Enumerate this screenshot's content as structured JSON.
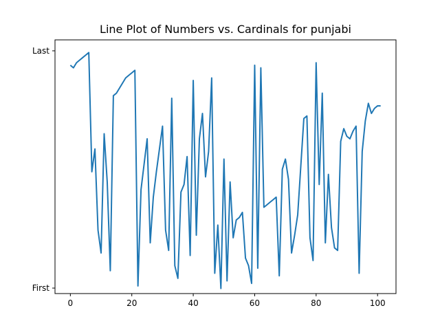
{
  "chart_data": {
    "type": "line",
    "title": "Line Plot of Numbers vs. Cardinals for punjabi",
    "xlabel": "",
    "ylabel": "",
    "xlim": [
      -5,
      106
    ],
    "ylim": [
      0,
      1
    ],
    "x_ticks": [
      0,
      20,
      40,
      60,
      80,
      100
    ],
    "y_ticks": [
      {
        "value": 0.0216,
        "label": "First"
      },
      {
        "value": 0.9568,
        "label": "Last"
      }
    ],
    "grid": false,
    "legend": "none",
    "line_color": "#1f77b4",
    "series": [
      {
        "x": [
          0,
          1,
          2,
          3,
          4,
          5,
          6,
          7,
          8,
          9,
          10,
          11,
          12,
          13,
          14,
          15,
          16,
          17,
          18,
          19,
          20,
          21,
          22,
          23,
          24,
          25,
          26,
          27,
          28,
          29,
          30,
          31,
          32,
          33,
          34,
          35,
          36,
          37,
          38,
          39,
          40,
          41,
          42,
          43,
          44,
          45,
          46,
          47,
          48,
          49,
          50,
          51,
          52,
          53,
          54,
          55,
          56,
          57,
          58,
          59,
          60,
          61,
          62,
          63,
          64,
          65,
          66,
          67,
          68,
          69,
          70,
          71,
          72,
          73,
          74,
          75,
          76,
          77,
          78,
          79,
          80,
          81,
          82,
          83,
          84,
          85,
          86,
          87,
          88,
          89,
          90,
          91,
          92,
          93,
          94,
          95,
          96,
          97,
          98,
          99,
          100,
          101
        ],
        "y": [
          0.9,
          0.89,
          0.91,
          0.92,
          0.93,
          0.94,
          0.95,
          0.48,
          0.57,
          0.25,
          0.16,
          0.63,
          0.44,
          0.09,
          0.78,
          0.79,
          0.81,
          0.83,
          0.85,
          0.86,
          0.87,
          0.88,
          0.03,
          0.41,
          0.51,
          0.61,
          0.2,
          0.38,
          0.48,
          0.57,
          0.66,
          0.25,
          0.17,
          0.77,
          0.11,
          0.06,
          0.4,
          0.43,
          0.54,
          0.15,
          0.84,
          0.23,
          0.61,
          0.71,
          0.46,
          0.56,
          0.85,
          0.08,
          0.27,
          0.02,
          0.53,
          0.05,
          0.44,
          0.22,
          0.29,
          0.3,
          0.32,
          0.14,
          0.11,
          0.04,
          0.9,
          0.1,
          0.89,
          0.34,
          0.35,
          0.36,
          0.37,
          0.38,
          0.07,
          0.49,
          0.53,
          0.45,
          0.16,
          0.23,
          0.31,
          0.5,
          0.69,
          0.7,
          0.22,
          0.13,
          0.91,
          0.43,
          0.79,
          0.2,
          0.47,
          0.26,
          0.18,
          0.17,
          0.6,
          0.65,
          0.62,
          0.61,
          0.64,
          0.66,
          0.08,
          0.56,
          0.68,
          0.75,
          0.71,
          0.73,
          0.74,
          0.74
        ]
      }
    ]
  }
}
